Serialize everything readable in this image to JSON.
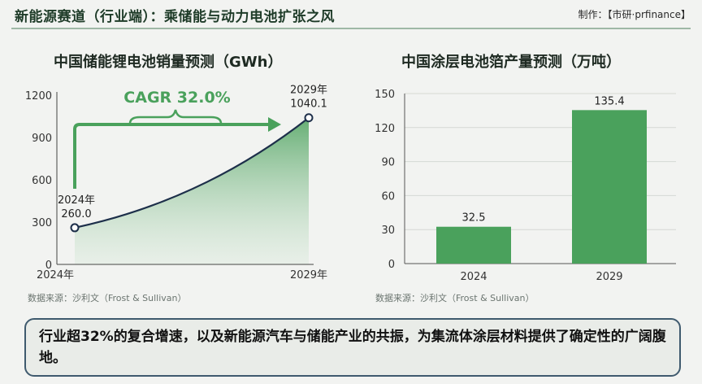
{
  "header": {
    "title": "新能源赛道（行业端）：乘储能与动力电池扩张之风",
    "credit": "制作：【市研·prfinance】"
  },
  "colors": {
    "primary_green": "#4aa15c",
    "area_top": "#5eaa6d",
    "frame_blue": "#3f5a6e"
  },
  "chart_data": [
    {
      "type": "area",
      "title": "中国储能锂电池销量预测（GWh）",
      "x": [
        "2024年",
        "2029年"
      ],
      "values": [
        260.0,
        1040.1
      ],
      "ylim": [
        0,
        1200
      ],
      "yticks": [
        0,
        300,
        600,
        900,
        1200
      ],
      "point_labels": [
        {
          "year": "2024年",
          "value": "260.0"
        },
        {
          "year": "2029年",
          "value": "1040.1"
        }
      ],
      "annotation": "CAGR 32.0%",
      "source": "数据来源：沙利文（Frost & Sullivan）"
    },
    {
      "type": "bar",
      "title": "中国涂层电池箔产量预测（万吨）",
      "categories": [
        "2024",
        "2029"
      ],
      "values": [
        32.5,
        135.4
      ],
      "value_labels": [
        "32.5",
        "135.4"
      ],
      "ylim": [
        0,
        150
      ],
      "yticks": [
        0,
        30,
        60,
        90,
        120,
        150
      ],
      "source": "数据来源：沙利文（Frost & Sullivan）"
    }
  ],
  "conclusion": "行业超32%的复合增速，以及新能源汽车与储能产业的共振，为集流体涂层材料提供了确定性的广阔腹地。"
}
